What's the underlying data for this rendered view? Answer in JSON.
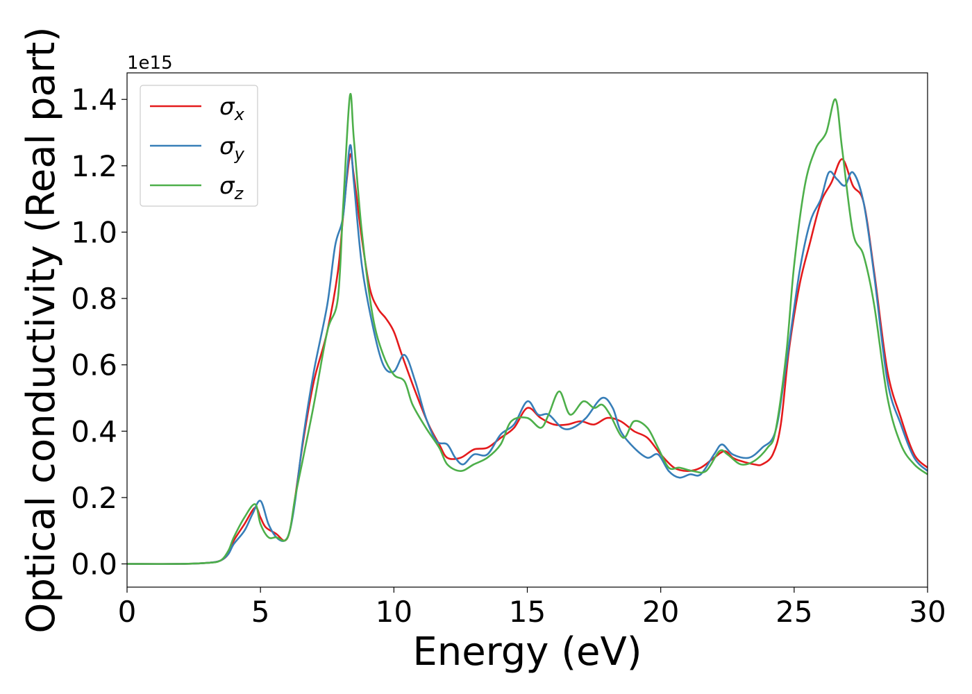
{
  "chart_data": {
    "type": "line",
    "title": "",
    "xlabel": "Energy (eV)",
    "ylabel": "Optical conductivity (Real part)",
    "y_offset_label": "1e15",
    "xlim": [
      0,
      30
    ],
    "ylim": [
      -0.07,
      1.48
    ],
    "xticks": [
      0,
      5,
      10,
      15,
      20,
      25,
      30
    ],
    "xtick_labels": [
      "0",
      "5",
      "10",
      "15",
      "20",
      "25",
      "30"
    ],
    "yticks": [
      0.0,
      0.2,
      0.4,
      0.6,
      0.8,
      1.0,
      1.2,
      1.4
    ],
    "ytick_labels": [
      "0.0",
      "0.2",
      "0.4",
      "0.6",
      "0.8",
      "1.0",
      "1.2",
      "1.4"
    ],
    "grid": false,
    "legend_position": "top-left",
    "series": [
      {
        "name": "σ",
        "subscript": "x",
        "color": "#e41a1c",
        "points": [
          [
            0,
            0
          ],
          [
            2,
            0
          ],
          [
            3,
            0.003
          ],
          [
            3.5,
            0.01
          ],
          [
            3.8,
            0.03
          ],
          [
            4,
            0.07
          ],
          [
            4.4,
            0.12
          ],
          [
            4.8,
            0.17
          ],
          [
            5,
            0.14
          ],
          [
            5.2,
            0.11
          ],
          [
            5.6,
            0.09
          ],
          [
            5.9,
            0.07
          ],
          [
            6.1,
            0.1
          ],
          [
            6.3,
            0.2
          ],
          [
            6.6,
            0.37
          ],
          [
            7,
            0.55
          ],
          [
            7.5,
            0.7
          ],
          [
            7.9,
            0.88
          ],
          [
            8.1,
            1.05
          ],
          [
            8.35,
            1.23
          ],
          [
            8.5,
            1.17
          ],
          [
            8.8,
            0.98
          ],
          [
            9.1,
            0.83
          ],
          [
            9.4,
            0.77
          ],
          [
            9.7,
            0.74
          ],
          [
            10,
            0.7
          ],
          [
            10.3,
            0.63
          ],
          [
            10.8,
            0.52
          ],
          [
            11.3,
            0.42
          ],
          [
            11.7,
            0.36
          ],
          [
            12,
            0.32
          ],
          [
            12.5,
            0.32
          ],
          [
            13,
            0.345
          ],
          [
            13.5,
            0.35
          ],
          [
            14,
            0.38
          ],
          [
            14.5,
            0.41
          ],
          [
            15,
            0.47
          ],
          [
            15.5,
            0.44
          ],
          [
            16,
            0.42
          ],
          [
            16.5,
            0.42
          ],
          [
            17,
            0.43
          ],
          [
            17.5,
            0.42
          ],
          [
            18,
            0.44
          ],
          [
            18.5,
            0.43
          ],
          [
            19,
            0.4
          ],
          [
            19.5,
            0.38
          ],
          [
            20,
            0.33
          ],
          [
            20.5,
            0.29
          ],
          [
            21,
            0.28
          ],
          [
            21.5,
            0.29
          ],
          [
            22,
            0.32
          ],
          [
            22.4,
            0.34
          ],
          [
            22.7,
            0.32
          ],
          [
            23,
            0.31
          ],
          [
            23.5,
            0.3
          ],
          [
            23.8,
            0.3
          ],
          [
            24.2,
            0.33
          ],
          [
            24.5,
            0.42
          ],
          [
            24.8,
            0.64
          ],
          [
            25.2,
            0.84
          ],
          [
            25.6,
            0.97
          ],
          [
            26,
            1.09
          ],
          [
            26.4,
            1.15
          ],
          [
            26.8,
            1.22
          ],
          [
            27.2,
            1.14
          ],
          [
            27.6,
            1.09
          ],
          [
            28,
            0.88
          ],
          [
            28.5,
            0.58
          ],
          [
            29,
            0.44
          ],
          [
            29.5,
            0.33
          ],
          [
            30,
            0.29
          ]
        ]
      },
      {
        "name": "σ",
        "subscript": "y",
        "color": "#377eb8",
        "points": [
          [
            0,
            0
          ],
          [
            2,
            0
          ],
          [
            3,
            0.003
          ],
          [
            3.5,
            0.01
          ],
          [
            3.8,
            0.03
          ],
          [
            4,
            0.06
          ],
          [
            4.4,
            0.1
          ],
          [
            4.7,
            0.15
          ],
          [
            5,
            0.19
          ],
          [
            5.3,
            0.12
          ],
          [
            5.6,
            0.08
          ],
          [
            5.9,
            0.07
          ],
          [
            6.1,
            0.1
          ],
          [
            6.3,
            0.19
          ],
          [
            6.6,
            0.38
          ],
          [
            7,
            0.58
          ],
          [
            7.5,
            0.78
          ],
          [
            7.8,
            0.96
          ],
          [
            8.1,
            1.05
          ],
          [
            8.35,
            1.26
          ],
          [
            8.5,
            1.15
          ],
          [
            8.8,
            0.9
          ],
          [
            9.2,
            0.72
          ],
          [
            9.6,
            0.6
          ],
          [
            10,
            0.58
          ],
          [
            10.4,
            0.63
          ],
          [
            10.8,
            0.55
          ],
          [
            11.2,
            0.44
          ],
          [
            11.6,
            0.37
          ],
          [
            12,
            0.36
          ],
          [
            12.3,
            0.32
          ],
          [
            12.6,
            0.3
          ],
          [
            13,
            0.33
          ],
          [
            13.5,
            0.33
          ],
          [
            14,
            0.39
          ],
          [
            14.5,
            0.42
          ],
          [
            15,
            0.49
          ],
          [
            15.4,
            0.45
          ],
          [
            15.8,
            0.45
          ],
          [
            16.3,
            0.41
          ],
          [
            16.7,
            0.41
          ],
          [
            17.2,
            0.44
          ],
          [
            17.8,
            0.5
          ],
          [
            18.2,
            0.47
          ],
          [
            18.5,
            0.4
          ],
          [
            19,
            0.35
          ],
          [
            19.5,
            0.32
          ],
          [
            19.9,
            0.33
          ],
          [
            20.3,
            0.28
          ],
          [
            20.7,
            0.26
          ],
          [
            21.1,
            0.27
          ],
          [
            21.5,
            0.27
          ],
          [
            22,
            0.33
          ],
          [
            22.3,
            0.36
          ],
          [
            22.7,
            0.33
          ],
          [
            23.3,
            0.32
          ],
          [
            23.8,
            0.35
          ],
          [
            24.3,
            0.4
          ],
          [
            24.7,
            0.6
          ],
          [
            25.2,
            0.88
          ],
          [
            25.6,
            1.03
          ],
          [
            26,
            1.1
          ],
          [
            26.3,
            1.18
          ],
          [
            26.6,
            1.16
          ],
          [
            26.9,
            1.14
          ],
          [
            27.2,
            1.18
          ],
          [
            27.6,
            1.09
          ],
          [
            28,
            0.87
          ],
          [
            28.5,
            0.55
          ],
          [
            29,
            0.42
          ],
          [
            29.5,
            0.32
          ],
          [
            30,
            0.28
          ]
        ]
      },
      {
        "name": "σ",
        "subscript": "z",
        "color": "#4daf4a",
        "points": [
          [
            0,
            0
          ],
          [
            2,
            0
          ],
          [
            3,
            0.003
          ],
          [
            3.5,
            0.01
          ],
          [
            3.8,
            0.04
          ],
          [
            4,
            0.08
          ],
          [
            4.4,
            0.14
          ],
          [
            4.8,
            0.18
          ],
          [
            5,
            0.12
          ],
          [
            5.3,
            0.08
          ],
          [
            5.6,
            0.08
          ],
          [
            5.9,
            0.07
          ],
          [
            6.1,
            0.1
          ],
          [
            6.3,
            0.2
          ],
          [
            6.6,
            0.32
          ],
          [
            7,
            0.48
          ],
          [
            7.5,
            0.7
          ],
          [
            7.9,
            0.8
          ],
          [
            8.1,
            1.08
          ],
          [
            8.35,
            1.41
          ],
          [
            8.5,
            1.28
          ],
          [
            8.8,
            1.0
          ],
          [
            9.2,
            0.75
          ],
          [
            9.6,
            0.63
          ],
          [
            10,
            0.57
          ],
          [
            10.4,
            0.55
          ],
          [
            10.7,
            0.48
          ],
          [
            11.2,
            0.41
          ],
          [
            11.7,
            0.35
          ],
          [
            12,
            0.3
          ],
          [
            12.5,
            0.28
          ],
          [
            13,
            0.3
          ],
          [
            13.5,
            0.32
          ],
          [
            14,
            0.36
          ],
          [
            14.4,
            0.43
          ],
          [
            15,
            0.44
          ],
          [
            15.5,
            0.41
          ],
          [
            15.8,
            0.45
          ],
          [
            16.2,
            0.52
          ],
          [
            16.6,
            0.45
          ],
          [
            17.1,
            0.49
          ],
          [
            17.5,
            0.47
          ],
          [
            17.8,
            0.48
          ],
          [
            18.1,
            0.45
          ],
          [
            18.6,
            0.38
          ],
          [
            19,
            0.43
          ],
          [
            19.5,
            0.41
          ],
          [
            19.9,
            0.35
          ],
          [
            20.3,
            0.29
          ],
          [
            20.7,
            0.29
          ],
          [
            21.2,
            0.28
          ],
          [
            21.7,
            0.28
          ],
          [
            22.2,
            0.34
          ],
          [
            22.5,
            0.33
          ],
          [
            23,
            0.3
          ],
          [
            23.5,
            0.31
          ],
          [
            24,
            0.35
          ],
          [
            24.3,
            0.4
          ],
          [
            24.7,
            0.63
          ],
          [
            25,
            0.9
          ],
          [
            25.4,
            1.14
          ],
          [
            25.8,
            1.25
          ],
          [
            26.2,
            1.3
          ],
          [
            26.55,
            1.4
          ],
          [
            26.8,
            1.25
          ],
          [
            27.2,
            1.0
          ],
          [
            27.6,
            0.93
          ],
          [
            28,
            0.78
          ],
          [
            28.5,
            0.5
          ],
          [
            29,
            0.36
          ],
          [
            29.5,
            0.3
          ],
          [
            30,
            0.27
          ]
        ]
      }
    ]
  }
}
